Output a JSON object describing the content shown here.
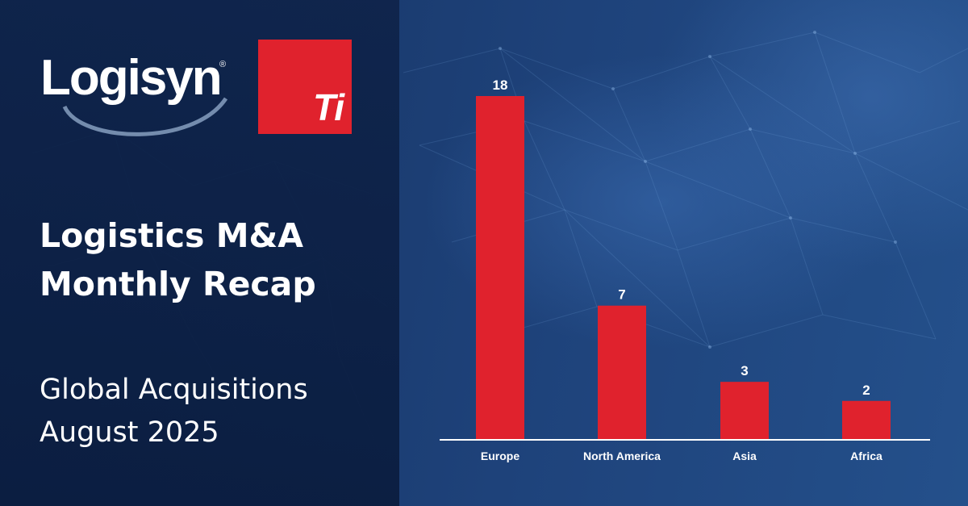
{
  "brand": {
    "logisyn_text": "Logisyn",
    "logisyn_reg": "®",
    "ti_text": "Ti"
  },
  "headline": {
    "line1": "Logistics M&A",
    "line2": "Monthly Recap"
  },
  "subheadline": {
    "line1": "Global Acquisitions",
    "line2": "August 2025"
  },
  "colors": {
    "accent": "#e0222d",
    "background": "#1c3b6e",
    "text": "#ffffff"
  },
  "chart_data": {
    "type": "bar",
    "categories": [
      "Europe",
      "North America",
      "Asia",
      "Africa"
    ],
    "values": [
      18,
      7,
      3,
      2
    ],
    "data_labels": [
      "18",
      "7",
      "3",
      "2"
    ],
    "title": "",
    "xlabel": "",
    "ylabel": "",
    "ylim": [
      0,
      18
    ],
    "grid": false,
    "legend": "none",
    "bar_color": "#e0222d"
  }
}
